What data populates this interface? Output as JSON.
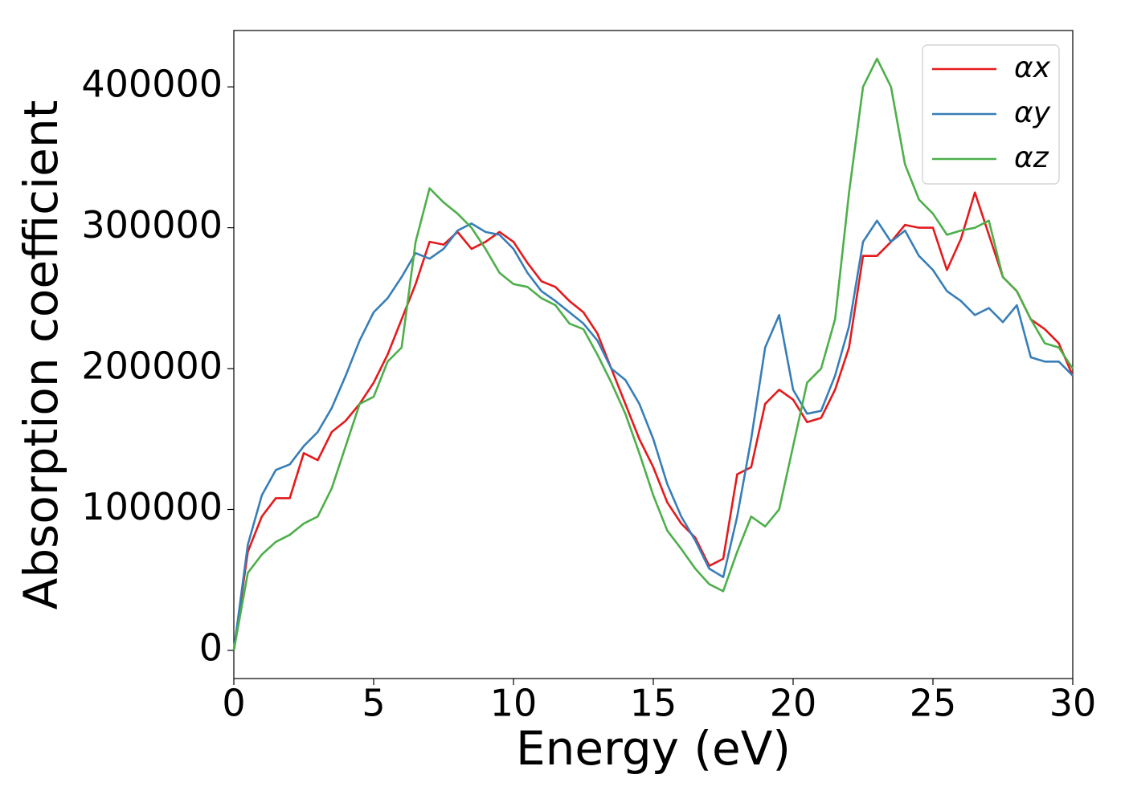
{
  "chart_data": {
    "type": "line",
    "xlabel": "Energy (eV)",
    "ylabel": "Absorption coefficient",
    "x": [
      0,
      0.5,
      1,
      1.5,
      2,
      2.5,
      3,
      3.5,
      4,
      4.5,
      5,
      5.5,
      6,
      6.5,
      7,
      7.5,
      8,
      8.5,
      9,
      9.5,
      10,
      10.5,
      11,
      11.5,
      12,
      12.5,
      13,
      13.5,
      14,
      14.5,
      15,
      15.5,
      16,
      16.5,
      17,
      17.5,
      18,
      18.5,
      19,
      19.5,
      20,
      20.5,
      21,
      21.5,
      22,
      22.5,
      23,
      23.5,
      24,
      24.5,
      25,
      25.5,
      26,
      26.5,
      27,
      27.5,
      28,
      28.5,
      29,
      29.5,
      30
    ],
    "series": [
      {
        "name": "αx",
        "color": "#e41a1c",
        "values": [
          0,
          70000,
          95000,
          108000,
          108000,
          140000,
          135000,
          155000,
          163000,
          175000,
          190000,
          210000,
          235000,
          260000,
          290000,
          288000,
          297000,
          285000,
          290000,
          297000,
          290000,
          275000,
          262000,
          258000,
          248000,
          240000,
          225000,
          200000,
          175000,
          150000,
          130000,
          105000,
          90000,
          80000,
          60000,
          65000,
          125000,
          130000,
          175000,
          185000,
          178000,
          162000,
          165000,
          185000,
          215000,
          280000,
          280000,
          290000,
          302000,
          300000,
          300000,
          270000,
          292000,
          325000,
          295000,
          265000,
          255000,
          235000,
          228000,
          218000,
          195000
        ]
      },
      {
        "name": "αy",
        "color": "#377eb8",
        "values": [
          0,
          75000,
          110000,
          128000,
          132000,
          145000,
          155000,
          172000,
          195000,
          220000,
          240000,
          250000,
          265000,
          282000,
          278000,
          285000,
          298000,
          303000,
          297000,
          295000,
          285000,
          268000,
          255000,
          248000,
          240000,
          232000,
          220000,
          200000,
          192000,
          175000,
          150000,
          118000,
          95000,
          78000,
          58000,
          52000,
          95000,
          150000,
          215000,
          238000,
          185000,
          168000,
          170000,
          195000,
          230000,
          290000,
          305000,
          290000,
          298000,
          280000,
          270000,
          255000,
          248000,
          238000,
          243000,
          233000,
          245000,
          208000,
          205000,
          205000,
          195000
        ]
      },
      {
        "name": "αz",
        "color": "#4daf4a",
        "values": [
          0,
          55000,
          68000,
          77000,
          82000,
          90000,
          95000,
          115000,
          145000,
          175000,
          180000,
          205000,
          215000,
          290000,
          328000,
          318000,
          310000,
          300000,
          285000,
          268000,
          260000,
          258000,
          250000,
          245000,
          232000,
          228000,
          210000,
          190000,
          168000,
          140000,
          110000,
          85000,
          72000,
          58000,
          47000,
          42000,
          70000,
          95000,
          88000,
          100000,
          145000,
          190000,
          200000,
          235000,
          325000,
          400000,
          420000,
          400000,
          345000,
          320000,
          310000,
          295000,
          298000,
          300000,
          305000,
          265000,
          255000,
          235000,
          218000,
          215000,
          200000
        ]
      }
    ],
    "xlim": [
      0,
      30
    ],
    "xticks": [
      0,
      5,
      10,
      15,
      20,
      25,
      30
    ],
    "ylim": [
      -20000,
      440000
    ],
    "yticks": [
      0,
      100000,
      200000,
      300000,
      400000
    ],
    "legend": "upper right",
    "grid": false
  }
}
